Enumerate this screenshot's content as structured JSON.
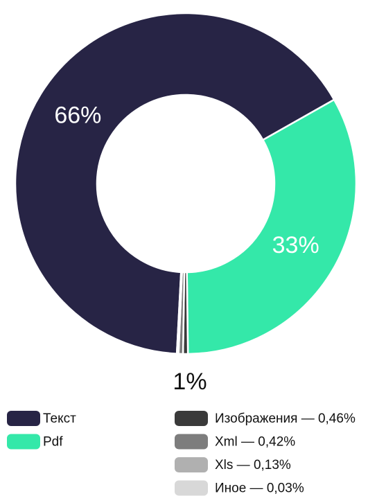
{
  "chart_data": {
    "type": "donut",
    "categories": [
      "Текст",
      "Pdf",
      "Изображения — 0,46%",
      "Xml — 0,42%",
      "Xls — 0,13%",
      "Иное — 0,03%"
    ],
    "values": [
      66,
      33,
      0.46,
      0.42,
      0.13,
      0.03
    ],
    "value_labels": [
      "66%",
      "33%",
      null,
      null,
      null,
      null
    ],
    "colors": [
      "#272445",
      "#34e8a9",
      "#3a3a3a",
      "#7d7d7d",
      "#b0b0b0",
      "#d8d8d8"
    ],
    "annotation": "1%",
    "start_angle": 183
  }
}
